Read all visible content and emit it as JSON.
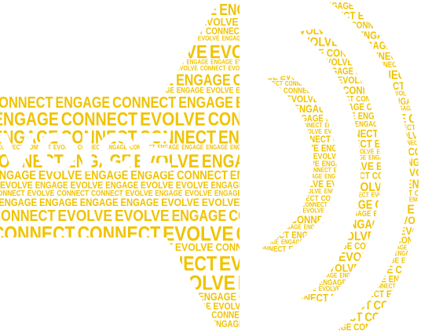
{
  "artwork": {
    "hidden_word": "VOICE",
    "color": "#f0c300",
    "words": {
      "engage": "ENGAGE",
      "evolve": "EVOLVE",
      "connect": "CONNECT"
    }
  }
}
